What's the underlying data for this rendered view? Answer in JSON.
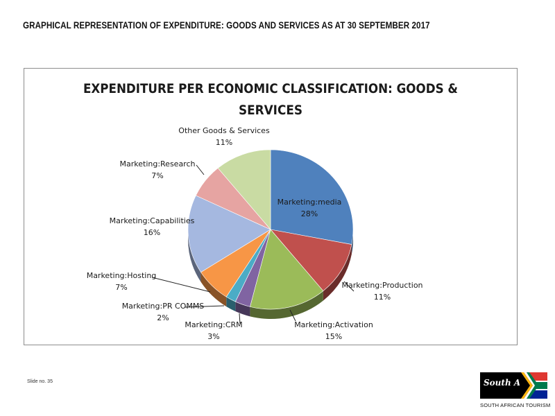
{
  "page": {
    "heading": "GRAPHICAL REPRESENTATION OF EXPENDITURE: GOODS AND SERVICES AS AT 30 SEPTEMBER 2017",
    "slide_number": "Slide no. 35"
  },
  "logo": {
    "script_text": "South Africa",
    "tagline": "SOUTH AFRICAN TOURISM",
    "flag_colors": [
      "#007a4d",
      "#ffb612",
      "#de3831",
      "#002395",
      "#ffffff",
      "#000000"
    ]
  },
  "chart_data": {
    "type": "pie",
    "title_lines": [
      "EXPENDITURE PER ECONOMIC CLASSIFICATION: GOODS &",
      "SERVICES"
    ],
    "start_angle_deg": 0,
    "direction": "clockwise",
    "slices": [
      {
        "name": "Marketing:media",
        "value": 28,
        "label": "28%",
        "color": "#4f81bd"
      },
      {
        "name": "Marketing:Production",
        "value": 11,
        "label": "11%",
        "color": "#c0504d"
      },
      {
        "name": "Marketing:Activation",
        "value": 15,
        "label": "15%",
        "color": "#9bbb59"
      },
      {
        "name": "Marketing:CRM",
        "value": 3,
        "label": "3%",
        "color": "#8064a2"
      },
      {
        "name": "Marketing:PR COMMS",
        "value": 2,
        "label": "2%",
        "color": "#4bacc6"
      },
      {
        "name": "Marketing:Hosting",
        "value": 7,
        "label": "7%",
        "color": "#f79646"
      },
      {
        "name": "Marketing:Capabilities",
        "value": 16,
        "label": "16%",
        "color": "#a5b8e0"
      },
      {
        "name": "Marketing:Research",
        "value": 7,
        "label": "7%",
        "color": "#e6a4a2"
      },
      {
        "name": "Other Goods & Services",
        "value": 11,
        "label": "11%",
        "color": "#c9dba3"
      }
    ]
  }
}
